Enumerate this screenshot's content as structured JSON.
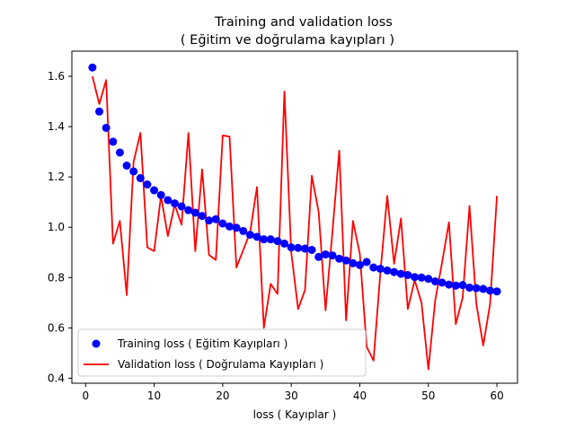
{
  "chart_data": {
    "type": "line",
    "title": "Training and validation loss",
    "subtitle": "( Eğitim ve doğrulama kayıpları )",
    "xlabel": "loss ( Kayıplar )",
    "ylabel": "",
    "xlim": [
      -2,
      63
    ],
    "ylim": [
      0.38,
      1.7
    ],
    "xticks": [
      0,
      10,
      20,
      30,
      40,
      50,
      60
    ],
    "yticks": [
      0.4,
      0.6,
      0.8,
      1.0,
      1.2,
      1.4,
      1.6
    ],
    "xtick_labels": [
      "0",
      "10",
      "20",
      "30",
      "40",
      "50",
      "60"
    ],
    "ytick_labels": [
      "0.4",
      "0.6",
      "0.8",
      "1.0",
      "1.2",
      "1.4",
      "1.6"
    ],
    "grid": false,
    "legend_position": "lower-left",
    "x": [
      1,
      2,
      3,
      4,
      5,
      6,
      7,
      8,
      9,
      10,
      11,
      12,
      13,
      14,
      15,
      16,
      17,
      18,
      19,
      20,
      21,
      22,
      23,
      24,
      25,
      26,
      27,
      28,
      29,
      30,
      31,
      32,
      33,
      34,
      35,
      36,
      37,
      38,
      39,
      40,
      41,
      42,
      43,
      44,
      45,
      46,
      47,
      48,
      49,
      50,
      51,
      52,
      53,
      54,
      55,
      56,
      57,
      58,
      59,
      60
    ],
    "series": [
      {
        "name": "Training loss ( Eğitim Kayıpları )",
        "style": "markers",
        "color": "#0000ff",
        "values": [
          1.635,
          1.46,
          1.395,
          1.34,
          1.297,
          1.245,
          1.222,
          1.195,
          1.17,
          1.147,
          1.128,
          1.108,
          1.095,
          1.083,
          1.068,
          1.058,
          1.045,
          1.027,
          1.032,
          1.015,
          1.003,
          0.998,
          0.985,
          0.97,
          0.962,
          0.952,
          0.952,
          0.945,
          0.935,
          0.92,
          0.918,
          0.915,
          0.91,
          0.882,
          0.892,
          0.888,
          0.875,
          0.868,
          0.857,
          0.85,
          0.862,
          0.84,
          0.835,
          0.828,
          0.822,
          0.815,
          0.81,
          0.802,
          0.8,
          0.795,
          0.785,
          0.78,
          0.772,
          0.768,
          0.77,
          0.76,
          0.758,
          0.755,
          0.748,
          0.745
        ]
      },
      {
        "name": "Validation loss ( Doğrulama Kayıpları )",
        "style": "line",
        "color": "#ff0000",
        "values": [
          1.6,
          1.49,
          1.585,
          0.935,
          1.025,
          0.73,
          1.26,
          1.375,
          0.92,
          0.905,
          1.125,
          0.965,
          1.09,
          1.01,
          1.375,
          0.905,
          1.23,
          0.89,
          0.87,
          1.365,
          1.36,
          0.84,
          0.91,
          0.98,
          1.16,
          0.6,
          0.775,
          0.735,
          1.54,
          0.9,
          0.675,
          0.75,
          1.205,
          1.06,
          0.67,
          0.98,
          1.305,
          0.63,
          1.025,
          0.895,
          0.525,
          0.47,
          0.82,
          1.125,
          0.855,
          1.035,
          0.675,
          0.79,
          0.7,
          0.435,
          0.71,
          0.86,
          1.02,
          0.615,
          0.72,
          1.085,
          0.695,
          0.53,
          0.695,
          1.125
        ]
      }
    ]
  }
}
